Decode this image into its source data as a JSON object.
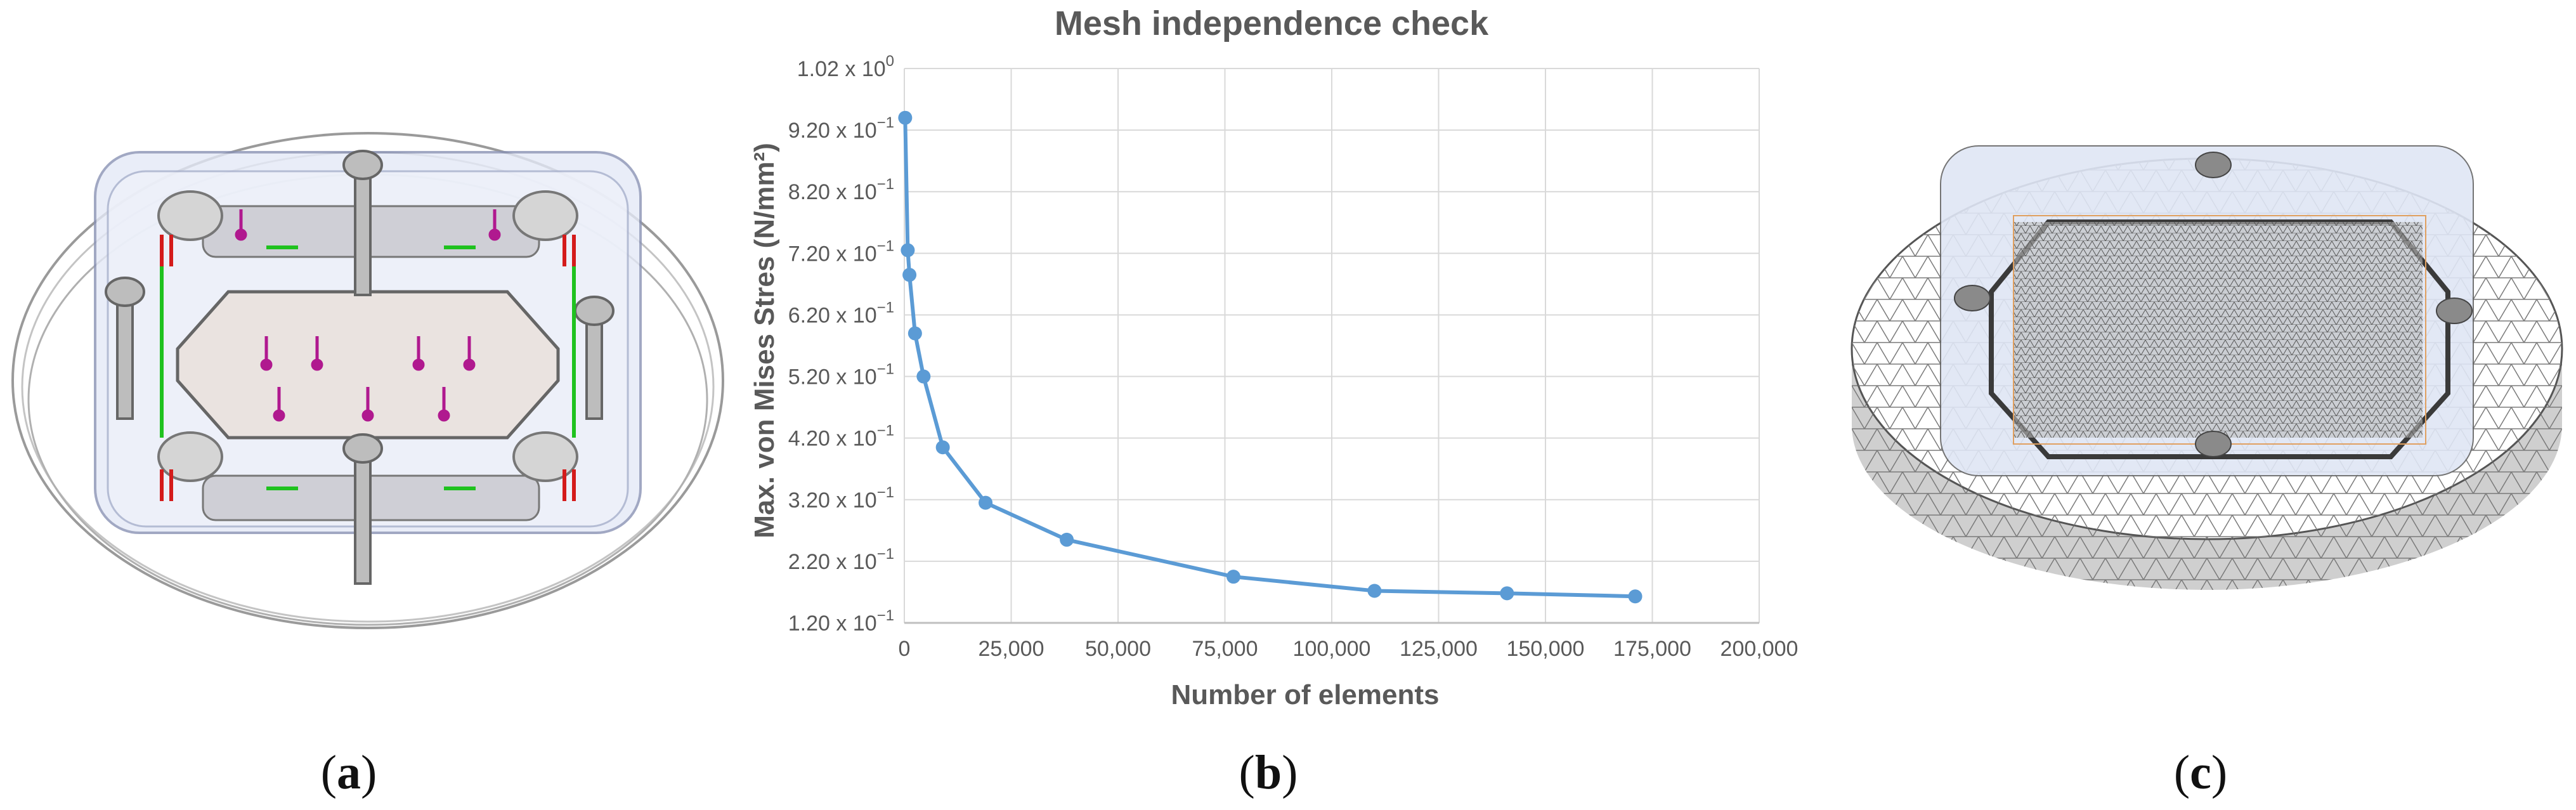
{
  "panels": {
    "a": {
      "label_open": "(",
      "label_letter": "a",
      "label_close": ")"
    },
    "b": {
      "label_open": "(",
      "label_letter": "b",
      "label_close": ")"
    },
    "c": {
      "label_open": "(",
      "label_letter": "c",
      "label_close": ")"
    }
  },
  "chart_data": {
    "type": "line",
    "title": "Mesh independence check",
    "xlabel": "Number of elements",
    "ylabel": "Max. von Mises Stres (N/mm²)",
    "xlim": [
      0,
      200000
    ],
    "ylim": [
      0.12,
      1.02
    ],
    "x_ticks": [
      "0",
      "25,000",
      "50,000",
      "75,000",
      "100,000",
      "125,000",
      "150,000",
      "175,000",
      "200,000"
    ],
    "y_ticks": [
      "1.20 x 10",
      "2.20 x 10",
      "3.20 x 10",
      "4.20 x 10",
      "5.20 x 10",
      "6.20 x 10",
      "7.20 x 10",
      "8.20 x 10",
      "9.20 x 10",
      "1.02 x 10"
    ],
    "y_tick_exponents": [
      "−1",
      "−1",
      "−1",
      "−1",
      "−1",
      "−1",
      "−1",
      "−1",
      "−1",
      "0"
    ],
    "grid": true,
    "series_color": "#5b9bd5",
    "series": [
      {
        "x": [
          200,
          800,
          1200,
          2500,
          4500,
          9000,
          19000,
          38000,
          77000,
          110000,
          141000,
          171000
        ],
        "y": [
          0.94,
          0.725,
          0.685,
          0.59,
          0.52,
          0.405,
          0.315,
          0.255,
          0.195,
          0.172,
          0.168,
          0.163
        ]
      }
    ]
  }
}
